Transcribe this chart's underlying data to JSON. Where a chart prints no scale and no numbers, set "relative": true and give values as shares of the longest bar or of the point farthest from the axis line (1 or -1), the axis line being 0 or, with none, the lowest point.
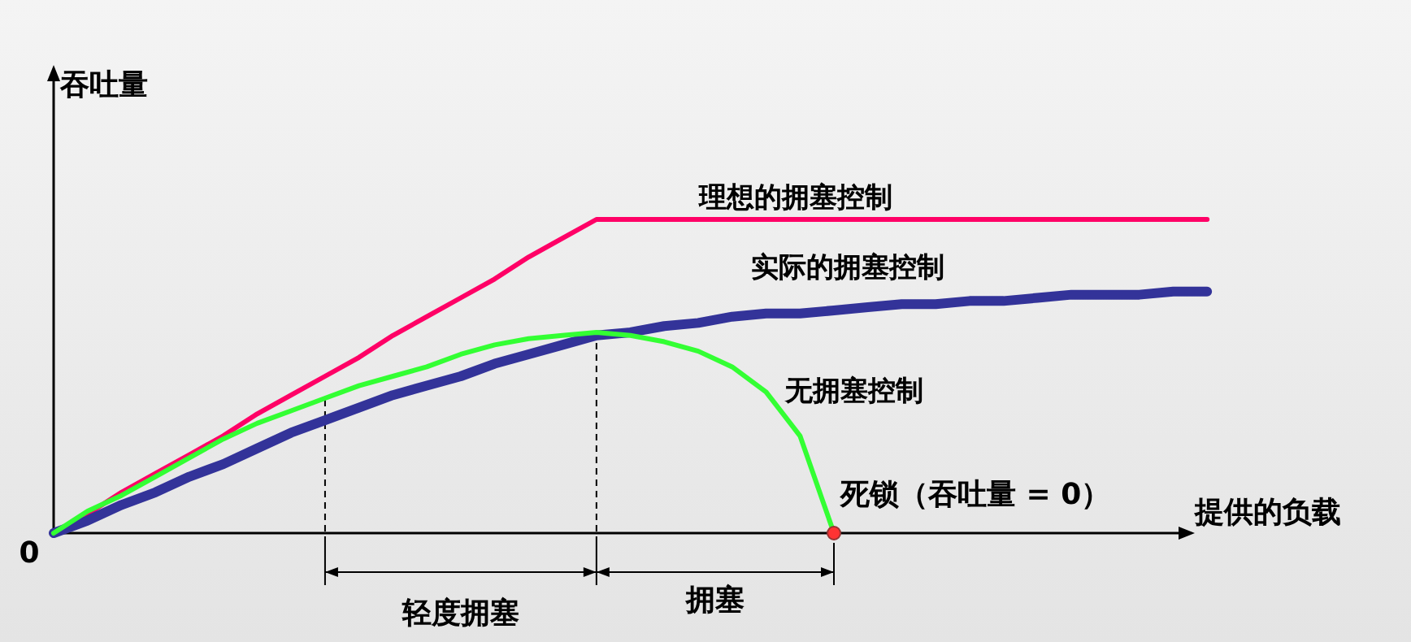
{
  "chart_data": {
    "type": "line",
    "relative": true,
    "ylabel": "吞吐量",
    "xlabel": "提供的负载",
    "line_style": "solid",
    "marker": "none",
    "legend": false,
    "tick_labels": false,
    "categories": [
      null,
      null,
      null,
      null,
      null,
      null,
      null,
      null,
      null,
      null,
      null,
      null,
      null,
      null,
      null,
      null,
      null,
      null,
      null,
      null,
      null,
      null,
      null,
      null,
      null,
      null,
      null,
      null,
      null,
      null,
      null,
      null,
      null,
      null,
      null
    ],
    "series": [
      {
        "name": "理想的拥塞控制",
        "color": "#ff0066",
        "values": [
          0,
          0.06,
          0.13,
          0.19,
          0.25,
          0.31,
          0.38,
          0.44,
          0.5,
          0.56,
          0.63,
          0.69,
          0.75,
          0.81,
          0.88,
          0.94,
          1,
          1,
          1,
          1,
          1,
          1,
          1,
          1,
          1,
          1,
          1,
          1,
          1,
          1,
          1,
          1,
          1,
          1,
          1
        ]
      },
      {
        "name": "实际的拥塞控制",
        "color": "#333399",
        "values": [
          0,
          0.04,
          0.09,
          0.13,
          0.18,
          0.22,
          0.27,
          0.32,
          0.36,
          0.4,
          0.44,
          0.47,
          0.5,
          0.54,
          0.57,
          0.6,
          0.63,
          0.64,
          0.66,
          0.67,
          0.69,
          0.7,
          0.7,
          0.71,
          0.72,
          0.73,
          0.73,
          0.74,
          0.74,
          0.75,
          0.76,
          0.76,
          0.76,
          0.77,
          0.77
        ]
      },
      {
        "name": "无拥塞控制",
        "color": "#33ff33",
        "values": [
          0,
          0.07,
          0.12,
          0.18,
          0.24,
          0.3,
          0.35,
          0.39,
          0.43,
          0.47,
          0.5,
          0.53,
          0.57,
          0.6,
          0.62,
          0.63,
          0.64,
          0.63,
          0.61,
          0.58,
          0.53,
          0.45,
          0.31,
          0,
          null,
          null,
          null,
          null,
          null,
          null,
          null,
          null,
          null,
          null,
          null
        ]
      }
    ],
    "annotations": [
      "0",
      "轻度拥塞",
      "拥塞",
      "死锁（吞吐量 = 0）"
    ]
  }
}
